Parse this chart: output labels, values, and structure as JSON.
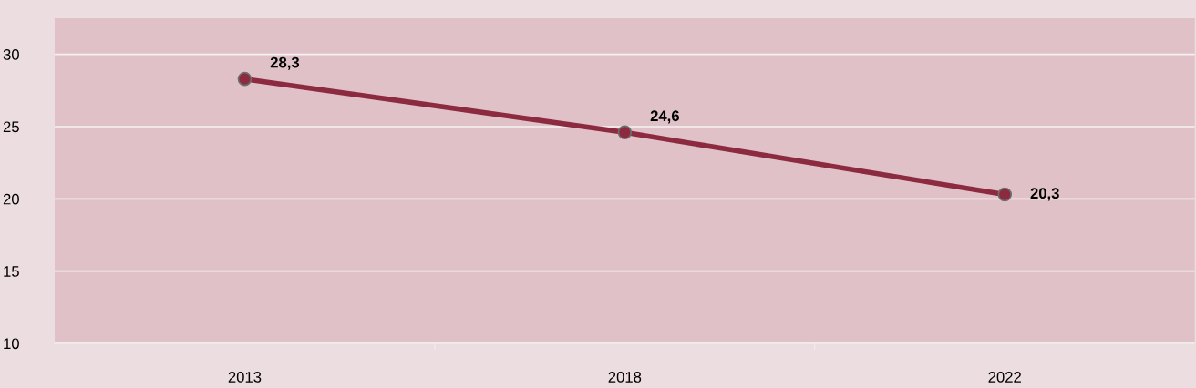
{
  "chart_data": {
    "type": "line",
    "categories": [
      "2013",
      "2018",
      "2022"
    ],
    "series": [
      {
        "color": "#8c2a3f",
        "values": [
          28.3,
          24.6,
          20.3
        ],
        "value_labels": [
          "28,3",
          "24,6",
          "20,3"
        ]
      }
    ],
    "ylim": [
      10,
      32.5
    ],
    "yticks": [
      10,
      15,
      20,
      25,
      30
    ],
    "grid": "y",
    "marker": "circle",
    "line_style": "solid",
    "legend": false
  }
}
